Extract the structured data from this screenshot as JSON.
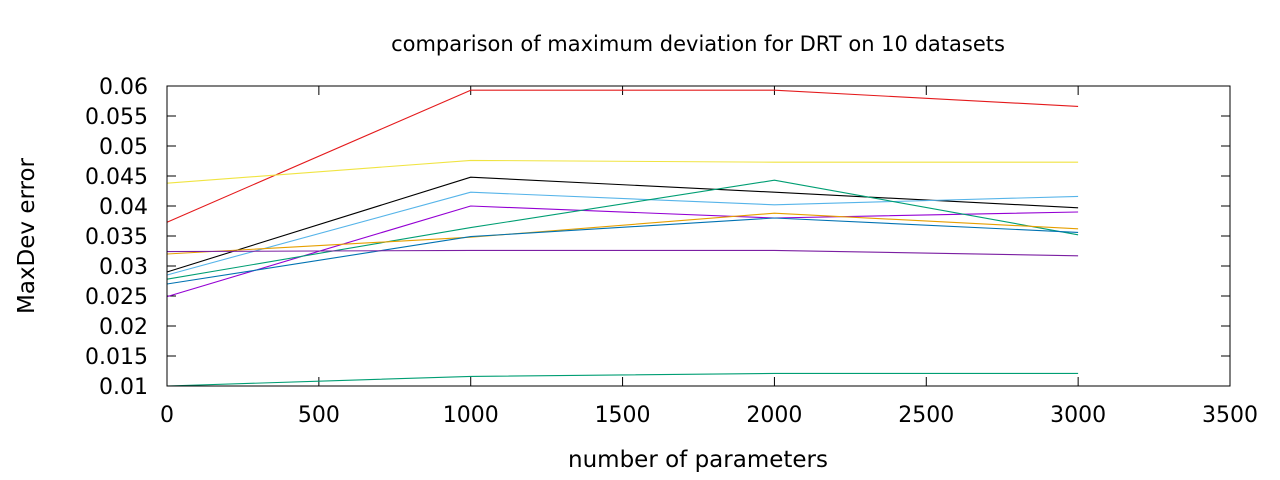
{
  "chart_data": {
    "type": "line",
    "title": "comparison of maximum deviation for DRT on 10 datasets",
    "xlabel": "number of parameters",
    "ylabel": "MaxDev error",
    "xlim": [
      0,
      3500
    ],
    "ylim": [
      0.01,
      0.06
    ],
    "xticks": [
      {
        "v": 0,
        "label": "0"
      },
      {
        "v": 500,
        "label": "500"
      },
      {
        "v": 1000,
        "label": "1000"
      },
      {
        "v": 1500,
        "label": "1500"
      },
      {
        "v": 2000,
        "label": "2000"
      },
      {
        "v": 2500,
        "label": "2500"
      },
      {
        "v": 3000,
        "label": "3000"
      },
      {
        "v": 3500,
        "label": "3500"
      }
    ],
    "yticks": [
      {
        "v": 0.01,
        "label": "0.01"
      },
      {
        "v": 0.015,
        "label": "0.015"
      },
      {
        "v": 0.02,
        "label": "0.02"
      },
      {
        "v": 0.025,
        "label": "0.025"
      },
      {
        "v": 0.03,
        "label": "0.03"
      },
      {
        "v": 0.035,
        "label": "0.035"
      },
      {
        "v": 0.04,
        "label": "0.04"
      },
      {
        "v": 0.045,
        "label": "0.045"
      },
      {
        "v": 0.05,
        "label": "0.05"
      },
      {
        "v": 0.055,
        "label": "0.055"
      },
      {
        "v": 0.06,
        "label": "0.06"
      }
    ],
    "grid": false,
    "legend": "none",
    "x": [
      0,
      1000,
      2000,
      3000
    ],
    "series": [
      {
        "color": "#e41a1c",
        "values": [
          0.0373,
          0.0593,
          0.0593,
          0.0566
        ]
      },
      {
        "color": "#f0e442",
        "values": [
          0.0438,
          0.0476,
          0.0473,
          0.0473
        ]
      },
      {
        "color": "#000000",
        "values": [
          0.029,
          0.0448,
          0.0423,
          0.0397
        ]
      },
      {
        "color": "#56b4e9",
        "values": [
          0.0285,
          0.0423,
          0.0402,
          0.0416
        ]
      },
      {
        "color": "#9400d3",
        "values": [
          0.0249,
          0.04,
          0.038,
          0.039
        ]
      },
      {
        "color": "#009e73",
        "values": [
          0.0278,
          0.0364,
          0.0443,
          0.0352
        ]
      },
      {
        "color": "#e69f00",
        "values": [
          0.032,
          0.0348,
          0.0388,
          0.0362
        ]
      },
      {
        "color": "#0072b2",
        "values": [
          0.027,
          0.0349,
          0.038,
          0.0356
        ]
      },
      {
        "color": "#7b1fa2",
        "values": [
          0.0324,
          0.0326,
          0.0326,
          0.0317
        ]
      },
      {
        "color": "#009e73",
        "values": [
          0.01,
          0.0116,
          0.0121,
          0.0121
        ]
      }
    ]
  }
}
